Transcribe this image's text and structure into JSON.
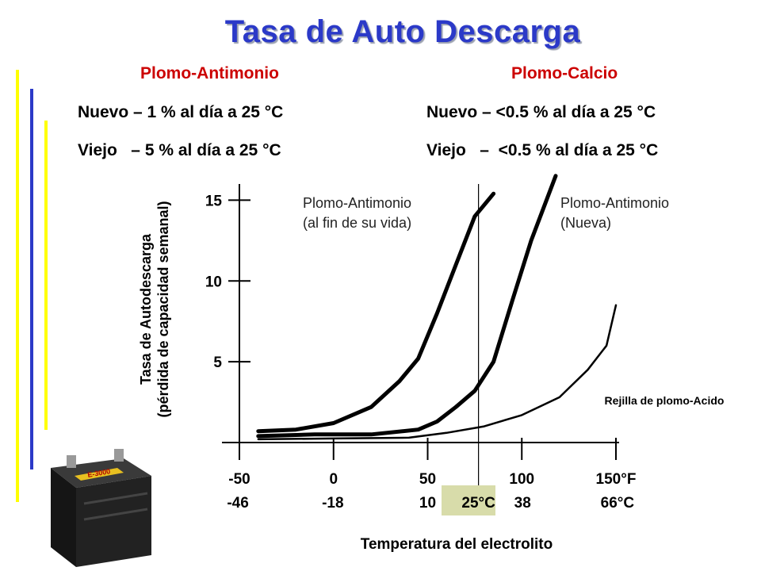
{
  "slide": {
    "title": "Tasa de Auto Descarga",
    "left_column": {
      "header": "Plomo-Antimonio",
      "line1": "Nuevo – 1 % al día a 25 °C",
      "line2": "Viejo   – 5 % al día a 25 °C"
    },
    "right_column": {
      "header": "Plomo-Calcio",
      "line1": "Nuevo – <0.5 % al día a 25 °C",
      "line2": "Viejo   –  <0.5 % al día a 25 °C"
    },
    "battery_label": "E-3000",
    "colors": {
      "title": "#2b39c8",
      "header": "#cc0000",
      "bar_yellow": "#ffff00",
      "bar_blue": "#2b39c8",
      "highlight_box": "#d8dcaa"
    }
  },
  "chart_data": {
    "type": "line",
    "title": "",
    "xlabel": "Temperatura del electrolito",
    "ylabel": "Tasa de Autodescarga\n(pérdida de capacidad semanal)",
    "x_ticks_f": [
      "-50",
      "0",
      "50",
      "100",
      "150°F"
    ],
    "x_ticks_c": [
      "-46",
      "-18",
      "10",
      "25°C",
      "38",
      "66°C"
    ],
    "x_ticks_f_values": [
      -50,
      0,
      50,
      100,
      150
    ],
    "x_ticks_c_values": [
      -46,
      -18,
      10,
      25,
      38,
      66
    ],
    "highlight_tick": "25°C",
    "reference_line_f": 77,
    "y_ticks": [
      "15",
      "10",
      "5"
    ],
    "y_tick_values": [
      15,
      10,
      5
    ],
    "xlim_f": [
      -50,
      150
    ],
    "ylim": [
      0,
      16
    ],
    "annotation_right": "Rejilla de plomo-Acido",
    "series": [
      {
        "name": "Plomo-Antimonio\n(al fin de su vida)",
        "points": [
          [
            -40,
            0.7
          ],
          [
            -20,
            0.8
          ],
          [
            0,
            1.2
          ],
          [
            20,
            2.2
          ],
          [
            35,
            3.8
          ],
          [
            45,
            5.2
          ],
          [
            55,
            8.0
          ],
          [
            65,
            11.0
          ],
          [
            75,
            14.0
          ],
          [
            85,
            15.4
          ]
        ]
      },
      {
        "name": "Plomo-Antimonio\n(Nueva)",
        "points": [
          [
            -40,
            0.4
          ],
          [
            -10,
            0.5
          ],
          [
            20,
            0.5
          ],
          [
            45,
            0.8
          ],
          [
            55,
            1.3
          ],
          [
            65,
            2.2
          ],
          [
            75,
            3.2
          ],
          [
            85,
            5.0
          ],
          [
            95,
            8.8
          ],
          [
            105,
            12.5
          ],
          [
            118,
            16.5
          ]
        ]
      },
      {
        "name": "Rejilla de plomo-Acido",
        "points": [
          [
            -40,
            0.2
          ],
          [
            0,
            0.25
          ],
          [
            40,
            0.3
          ],
          [
            60,
            0.6
          ],
          [
            80,
            1.0
          ],
          [
            100,
            1.7
          ],
          [
            120,
            2.8
          ],
          [
            135,
            4.5
          ],
          [
            145,
            6.0
          ],
          [
            150,
            8.5
          ]
        ]
      }
    ]
  }
}
